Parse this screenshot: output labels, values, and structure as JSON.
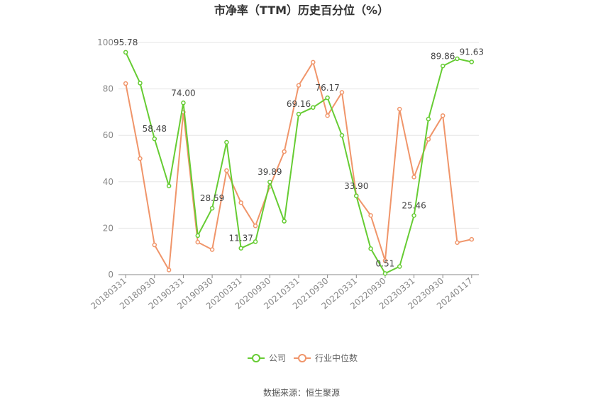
{
  "chart_data": {
    "type": "line",
    "title": "市净率（TTM）历史百分位（%）",
    "source": "数据来源：恒生聚源",
    "ylim": [
      0,
      100
    ],
    "yticks": [
      0,
      20,
      40,
      60,
      80,
      100
    ],
    "grid": true,
    "legend_position": "bottom-center",
    "x_tick_labels": [
      "20180331",
      "20180930",
      "20190331",
      "20190930",
      "20200331",
      "20200930",
      "20210331",
      "20210930",
      "20220331",
      "20220930",
      "20230331",
      "20230930",
      "20240117"
    ],
    "series": [
      {
        "name": "公司",
        "color": "#66cc33",
        "values": [
          95.78,
          82.5,
          58.48,
          38.2,
          74.0,
          16.8,
          28.59,
          57.0,
          11.37,
          14.2,
          39.89,
          23.0,
          69.16,
          72.0,
          76.17,
          60.0,
          33.9,
          11.2,
          0.51,
          3.5,
          25.46,
          67.0,
          89.86,
          93.0,
          91.63
        ]
      },
      {
        "name": "行业中位数",
        "color": "#f0956a",
        "values": [
          82.3,
          50.0,
          12.8,
          2.0,
          70.0,
          14.0,
          10.8,
          44.8,
          31.0,
          21.0,
          38.0,
          53.0,
          81.5,
          91.5,
          68.5,
          78.5,
          34.0,
          25.5,
          6.0,
          71.3,
          42.0,
          58.3,
          68.5,
          13.8,
          15.2
        ]
      }
    ],
    "data_labels": [
      {
        "index": 0,
        "text": "95.78"
      },
      {
        "index": 2,
        "text": "58.48"
      },
      {
        "index": 4,
        "text": "74.00"
      },
      {
        "index": 6,
        "text": "28.59"
      },
      {
        "index": 8,
        "text": "11.37"
      },
      {
        "index": 10,
        "text": "39.89"
      },
      {
        "index": 12,
        "text": "69.16"
      },
      {
        "index": 14,
        "text": "76.17"
      },
      {
        "index": 16,
        "text": "33.90"
      },
      {
        "index": 18,
        "text": "0.51"
      },
      {
        "index": 20,
        "text": "25.46"
      },
      {
        "index": 22,
        "text": "89.86"
      },
      {
        "index": 24,
        "text": "91.63"
      }
    ]
  }
}
